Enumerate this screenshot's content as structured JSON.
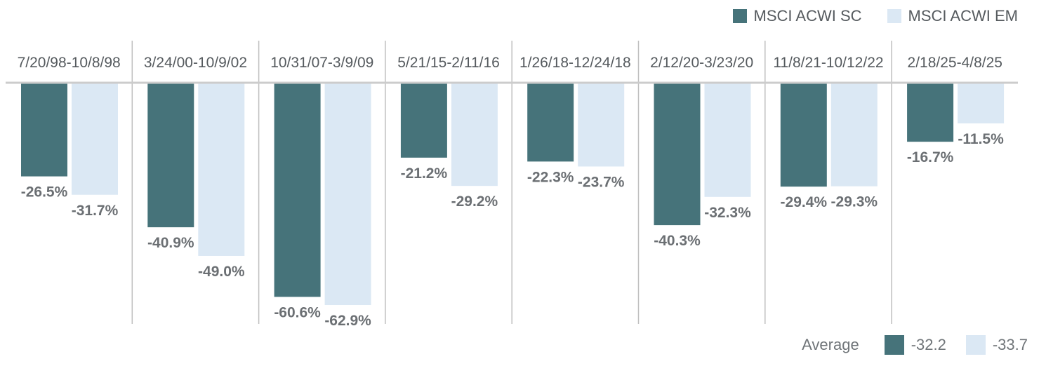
{
  "colors": {
    "sc": "#46737a",
    "em": "#dbe8f4",
    "axis": "#cccccc",
    "divider": "#bfbfbf",
    "label": "#6b6f73",
    "period": "#555a5e"
  },
  "legend": {
    "sc_label": "MSCI ACWI SC",
    "em_label": "MSCI ACWI EM"
  },
  "average": {
    "label": "Average",
    "sc_value": "-32.2",
    "em_value": "-33.7"
  },
  "chart_data": {
    "type": "bar",
    "title": "",
    "categories": [
      "7/20/98-10/8/98",
      "3/24/00-10/9/02",
      "10/31/07-3/9/09",
      "5/21/15-2/11/16",
      "1/26/18-12/24/18",
      "2/12/20-3/23/20",
      "11/8/21-10/12/22",
      "2/18/25-4/8/25"
    ],
    "series": [
      {
        "name": "MSCI ACWI SC",
        "values": [
          -26.5,
          -40.9,
          -60.6,
          -21.2,
          -22.3,
          -40.3,
          -29.4,
          -16.7
        ],
        "labels": [
          "-26.5%",
          "-40.9%",
          "-60.6%",
          "-21.2%",
          "-22.3%",
          "-40.3%",
          "-29.4%",
          "-16.7%"
        ]
      },
      {
        "name": "MSCI ACWI EM",
        "values": [
          -31.7,
          -49.0,
          -62.9,
          -29.2,
          -23.7,
          -32.3,
          -29.3,
          -11.5
        ],
        "labels": [
          "-31.7%",
          "-49.0%",
          "-62.9%",
          "-29.2%",
          "-23.7%",
          "-32.3%",
          "-29.3%",
          "-11.5%"
        ]
      }
    ],
    "ylim": [
      -65,
      0
    ],
    "grid": false,
    "legend_position": "top-right"
  }
}
